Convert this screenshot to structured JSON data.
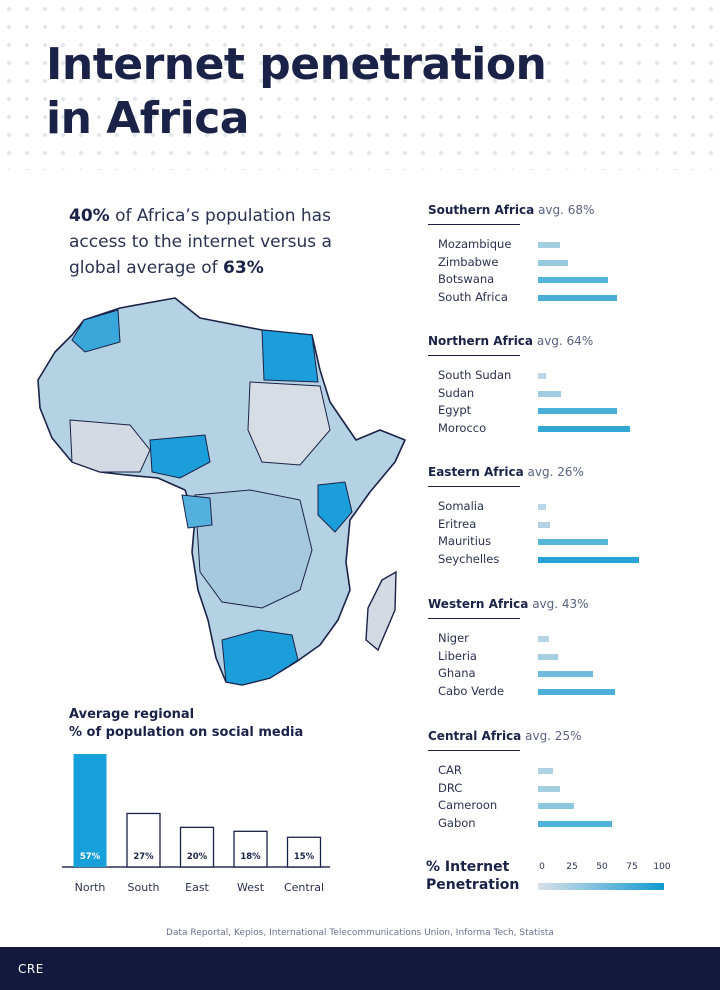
{
  "header": {
    "title_line1": "Internet penetration",
    "title_line2": "in Africa"
  },
  "intro": {
    "pct": "40%",
    "text1": " of Africa’s population has access to the internet versus a global average of ",
    "global": "63%"
  },
  "colors": {
    "navy": "#1b2247",
    "accent": "#16a0dc",
    "bar_light": "#b9d3e1",
    "bar_dark": "#2aa3d4",
    "footer": "#13193d"
  },
  "regions": [
    {
      "name": "Southern Africa",
      "avg": "avg. 68%",
      "countries": [
        {
          "name": "Mozambique",
          "value": 20
        },
        {
          "name": "Zimbabwe",
          "value": 27
        },
        {
          "name": "Botswana",
          "value": 64
        },
        {
          "name": "South Africa",
          "value": 72
        }
      ]
    },
    {
      "name": "Northern Africa",
      "avg": "avg. 64%",
      "countries": [
        {
          "name": "South Sudan",
          "value": 7
        },
        {
          "name": "Sudan",
          "value": 21
        },
        {
          "name": "Egypt",
          "value": 72
        },
        {
          "name": "Morocco",
          "value": 84
        }
      ]
    },
    {
      "name": "Eastern Africa",
      "avg": "avg. 26%",
      "countries": [
        {
          "name": "Somalia",
          "value": 7
        },
        {
          "name": "Eritrea",
          "value": 11
        },
        {
          "name": "Mauritius",
          "value": 64
        },
        {
          "name": "Seychelles",
          "value": 92
        }
      ]
    },
    {
      "name": "Western Africa",
      "avg": "avg. 43%",
      "countries": [
        {
          "name": "Niger",
          "value": 10
        },
        {
          "name": "Liberia",
          "value": 18
        },
        {
          "name": "Ghana",
          "value": 50
        },
        {
          "name": "Cabo Verde",
          "value": 70
        }
      ]
    },
    {
      "name": "Central Africa",
      "avg": "avg. 25%",
      "countries": [
        {
          "name": "CAR",
          "value": 14
        },
        {
          "name": "DRC",
          "value": 20
        },
        {
          "name": "Cameroon",
          "value": 33
        },
        {
          "name": "Gabon",
          "value": 67
        }
      ]
    }
  ],
  "chart_data": {
    "type": "bar",
    "title": "Average regional % of population on social media",
    "title_line1": "Average regional",
    "title_line2": "% of population on social media",
    "categories": [
      "North",
      "South",
      "East",
      "West",
      "Central"
    ],
    "values": [
      57,
      27,
      20,
      18,
      15
    ],
    "labels": [
      "57%",
      "27%",
      "20%",
      "18%",
      "15%"
    ],
    "ylim": [
      0,
      57
    ],
    "xlabel": "",
    "ylabel": ""
  },
  "legend": {
    "label_line1": "% Internet",
    "label_line2": "Penetration",
    "ticks": [
      "0",
      "25",
      "50",
      "75",
      "100"
    ]
  },
  "source": "Data Reportal, Kepios, International Telecommunications Union, Informa Tech, Statista",
  "footer": {
    "brand": "CRE"
  }
}
